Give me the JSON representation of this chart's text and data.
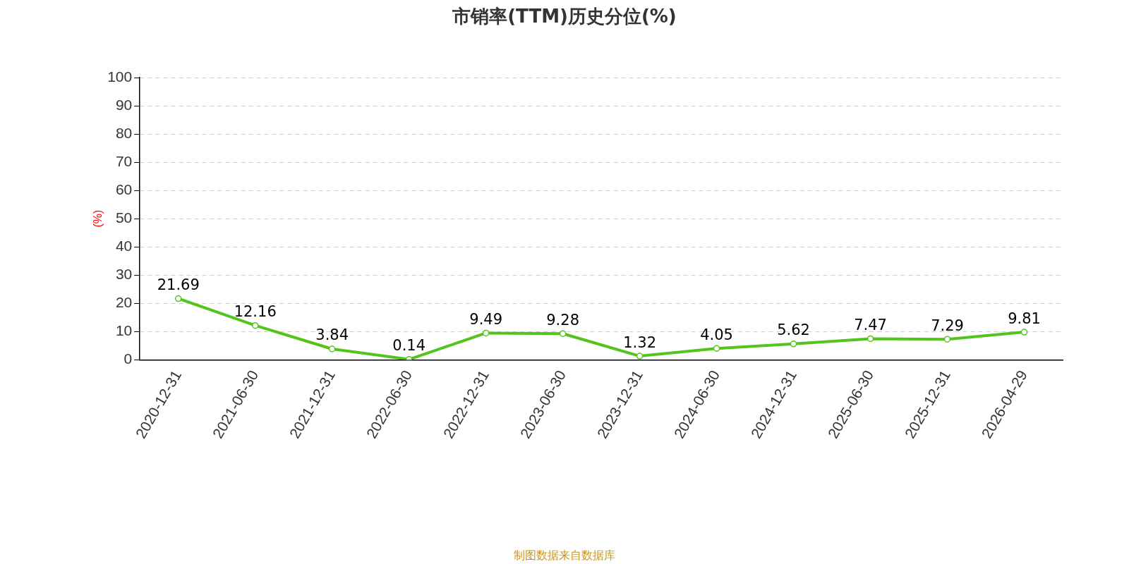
{
  "chart_data": {
    "type": "line",
    "title": "市销率(TTM)历史分位(%)",
    "ylabel": "(%)",
    "categories": [
      "2020-12-31",
      "2021-06-30",
      "2021-12-31",
      "2022-06-30",
      "2022-12-31",
      "2023-06-30",
      "2023-12-31",
      "2024-06-30",
      "2024-12-31",
      "2025-06-30",
      "2025-12-31",
      "2026-04-29"
    ],
    "series": [
      {
        "color": "#52c41a",
        "values": [
          21.69,
          12.16,
          3.84,
          0.14,
          9.49,
          9.28,
          1.32,
          4.05,
          5.62,
          7.47,
          7.29,
          9.81
        ]
      }
    ],
    "ylim": [
      0,
      100
    ],
    "yticks": [
      0,
      10,
      20,
      30,
      40,
      50,
      60,
      70,
      80,
      90,
      100
    ],
    "grid": "y",
    "legend": false,
    "marker": "circle",
    "line_style": "solid",
    "data_labels": true,
    "annotations": [
      "制图数据来自数据库"
    ]
  }
}
